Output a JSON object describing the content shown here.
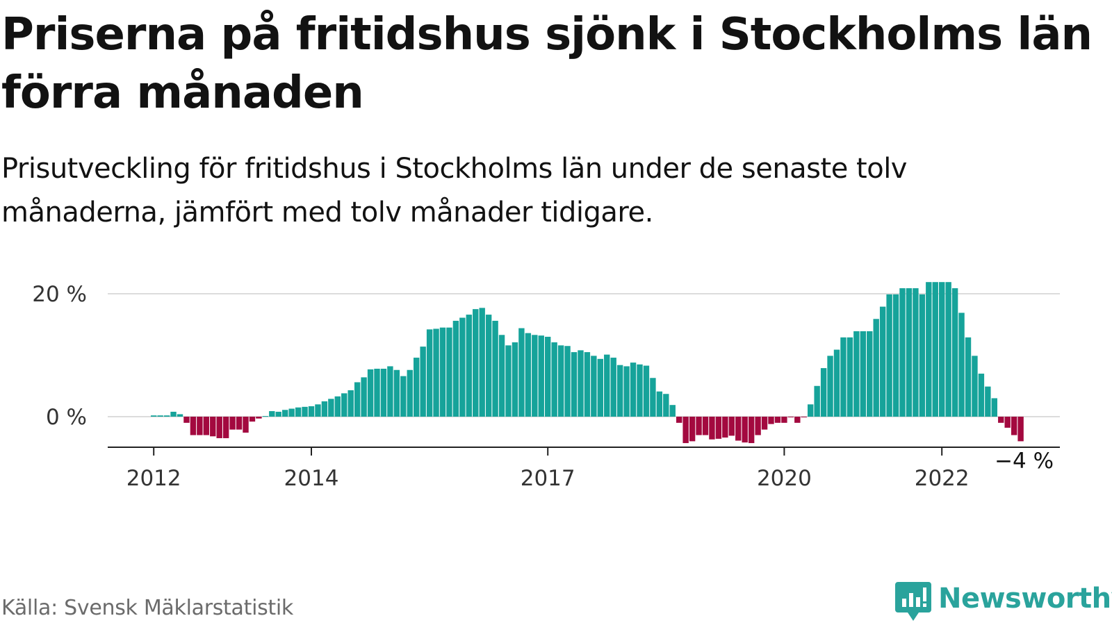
{
  "header": {
    "title": "Priserna på fritidshus sjönk i Stockholms län förra månaden",
    "subtitle": "Prisutveckling för fritidshus i Stockholms län under de senaste tolv månaderna, jämfört med tolv månader tidigare."
  },
  "footer": {
    "source": "Källa: Svensk Mäklarstatistik",
    "brand": "Newsworthy"
  },
  "colors": {
    "positive": "#16a39a",
    "negative": "#a3093f",
    "grid": "#dcdcdc",
    "axis": "#222222",
    "brand": "#2aa39c"
  },
  "chart_data": {
    "type": "bar",
    "title": "",
    "xlabel": "",
    "ylabel": "",
    "ylim": [
      -6,
      22
    ],
    "y_ticks": [
      {
        "value": 0,
        "label": "0 %"
      },
      {
        "value": 20,
        "label": "20 %"
      }
    ],
    "x_ticks": [
      {
        "value": "2012",
        "index": 0
      },
      {
        "value": "2014",
        "index": 24
      },
      {
        "value": "2017",
        "index": 60
      },
      {
        "value": "2020",
        "index": 96
      },
      {
        "value": "2022",
        "index": 120
      }
    ],
    "grid": true,
    "last_value_label": "−4 %",
    "series": [
      {
        "x_start": "2012-01",
        "frequency": "monthly",
        "values": [
          0.2,
          0.2,
          0.2,
          0.8,
          0.4,
          -1.0,
          -3.0,
          -3.0,
          -3.0,
          -3.2,
          -3.5,
          -3.5,
          -2.1,
          -2.1,
          -2.6,
          -0.8,
          -0.3,
          0.1,
          0.9,
          0.8,
          1.1,
          1.3,
          1.5,
          1.6,
          1.7,
          2.0,
          2.5,
          2.9,
          3.3,
          3.8,
          4.3,
          5.6,
          6.4,
          7.7,
          7.8,
          7.8,
          8.2,
          7.6,
          6.6,
          7.6,
          9.6,
          11.4,
          14.2,
          14.3,
          14.5,
          14.5,
          15.6,
          16.1,
          16.6,
          17.5,
          17.7,
          16.6,
          15.6,
          13.3,
          11.6,
          12.1,
          14.4,
          13.6,
          13.3,
          13.2,
          13.0,
          12.1,
          11.6,
          11.5,
          10.5,
          10.8,
          10.5,
          9.9,
          9.4,
          10.1,
          9.6,
          8.4,
          8.2,
          8.8,
          8.5,
          8.3,
          6.3,
          4.1,
          3.7,
          1.9,
          -1.0,
          -4.3,
          -4.0,
          -3.0,
          -3.0,
          -3.7,
          -3.6,
          -3.4,
          -3.1,
          -3.9,
          -4.2,
          -4.3,
          -3.0,
          -2.1,
          -1.2,
          -1.0,
          -1.0,
          -0.1,
          -1.0,
          -0.1,
          2.0,
          5.0,
          7.9,
          9.9,
          10.9,
          12.9,
          12.9,
          13.9,
          13.9,
          13.9,
          15.9,
          17.9,
          19.9,
          19.9,
          20.9,
          20.9,
          20.9,
          19.9,
          21.9,
          21.9,
          21.9,
          21.9,
          20.9,
          16.9,
          12.9,
          9.9,
          7.0,
          4.9,
          3.0,
          -1.0,
          -1.8,
          -3.0,
          -4.0
        ]
      }
    ]
  }
}
